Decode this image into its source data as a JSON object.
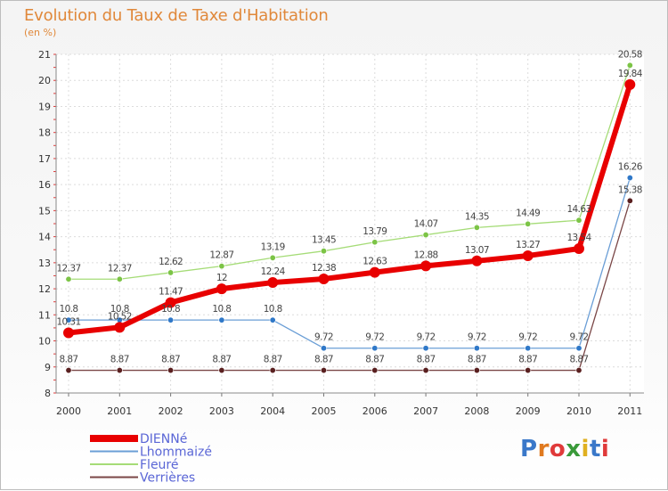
{
  "header": {
    "title": "Evolution du Taux de Taxe d'Habitation",
    "subtitle": "(en %)"
  },
  "logo": {
    "text": "Proxiti",
    "colors": [
      "#3a78c9",
      "#e07a20",
      "#e03a3a",
      "#3a9a3a",
      "#e0b020",
      "#3a78c9",
      "#e03a3a"
    ]
  },
  "chart_data": {
    "type": "line",
    "title": "Evolution du Taux de Taxe d'Habitation",
    "ylabel": "(en %)",
    "xlabel": "",
    "x": [
      "2000",
      "2001",
      "2002",
      "2003",
      "2004",
      "2005",
      "2006",
      "2007",
      "2008",
      "2009",
      "2010",
      "2011"
    ],
    "ylim": [
      8,
      21
    ],
    "yticks": [
      8,
      9,
      10,
      11,
      12,
      13,
      14,
      15,
      16,
      17,
      18,
      19,
      20,
      21
    ],
    "grid": true,
    "legend_position": "bottom-left",
    "series": [
      {
        "name": "DIENNé",
        "color": "#e80000",
        "marker": "#e80000",
        "width": 6,
        "values": [
          10.31,
          10.52,
          11.47,
          12,
          12.24,
          12.38,
          12.63,
          12.88,
          13.07,
          13.27,
          13.54,
          19.84
        ],
        "labels": [
          "10.31",
          "10.52",
          "11.47",
          "12",
          "12.24",
          "12.38",
          "12.63",
          "12.88",
          "13.07",
          "13.27",
          "13.54",
          "19.84"
        ]
      },
      {
        "name": "Lhommaizé",
        "color": "#6a9ed6",
        "marker": "#2f78c8",
        "width": 1.3,
        "values": [
          10.8,
          10.8,
          10.8,
          10.8,
          10.8,
          9.72,
          9.72,
          9.72,
          9.72,
          9.72,
          9.72,
          16.26
        ],
        "labels": [
          "10.8",
          "10.8",
          "10.8",
          "10.8",
          "10.8",
          "9.72",
          "9.72",
          "9.72",
          "9.72",
          "9.72",
          "9.72",
          "16.26"
        ]
      },
      {
        "name": "Fleuré",
        "color": "#a5dc77",
        "marker": "#7cc446",
        "width": 1.3,
        "values": [
          12.37,
          12.37,
          12.62,
          12.87,
          13.19,
          13.45,
          13.79,
          14.07,
          14.35,
          14.49,
          14.63,
          20.58
        ],
        "labels": [
          "12.37",
          "12.37",
          "12.62",
          "12.87",
          "13.19",
          "13.45",
          "13.79",
          "14.07",
          "14.35",
          "14.49",
          "14.63",
          "20.58"
        ]
      },
      {
        "name": "Verrières",
        "color": "#7a4646",
        "marker": "#5a2020",
        "width": 1.3,
        "values": [
          8.87,
          8.87,
          8.87,
          8.87,
          8.87,
          8.87,
          8.87,
          8.87,
          8.87,
          8.87,
          8.87,
          15.38
        ],
        "labels": [
          "8.87",
          "8.87",
          "8.87",
          "8.87",
          "8.87",
          "8.87",
          "8.87",
          "8.87",
          "8.87",
          "8.87",
          "8.87",
          "15.38"
        ]
      }
    ]
  }
}
